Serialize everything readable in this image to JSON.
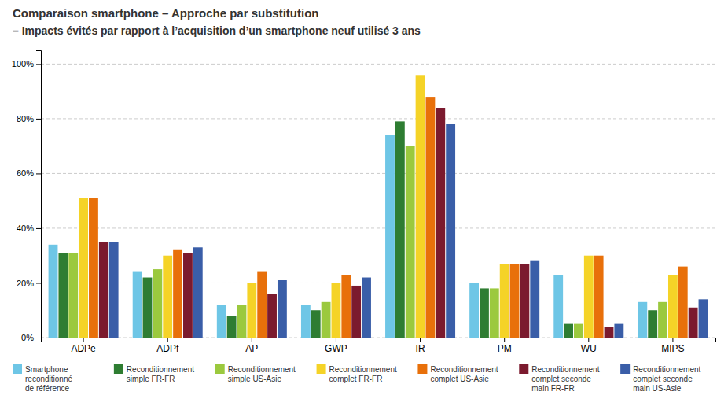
{
  "chart_data": {
    "type": "bar",
    "title": "Comparaison smartphone – Approche par substitution",
    "subtitle": "– Impacts évités par rapport à l’acquisition d’un smartphone neuf utilisé 3 ans",
    "categories": [
      "ADPe",
      "ADPf",
      "AP",
      "GWP",
      "IR",
      "PM",
      "WU",
      "MIPS"
    ],
    "series": [
      {
        "name": "Smartphone\nreconditionné\nde référence",
        "color": "#6ec6e6",
        "values": [
          34,
          24,
          12,
          12,
          74,
          20,
          23,
          13
        ]
      },
      {
        "name": "Reconditionnement\nsimple FR-FR",
        "color": "#2e7d32",
        "values": [
          31,
          22,
          8,
          10,
          79,
          18,
          5,
          10
        ]
      },
      {
        "name": "Reconditionnement\nsimple US-Asie",
        "color": "#9bc93e",
        "values": [
          31,
          25,
          12,
          13,
          70,
          18,
          5,
          13
        ]
      },
      {
        "name": "Reconditionnement\ncomplet FR-FR",
        "color": "#f5d327",
        "values": [
          51,
          30,
          20,
          20,
          96,
          27,
          30,
          23
        ]
      },
      {
        "name": "Reconditionnement\ncomplet US-Asie",
        "color": "#e8700a",
        "values": [
          51,
          32,
          24,
          23,
          88,
          27,
          30,
          26
        ]
      },
      {
        "name": "Reconditionnement\ncomplet seconde\nmain FR-FR",
        "color": "#7b1a2e",
        "values": [
          35,
          31,
          16,
          19,
          84,
          27,
          4,
          11
        ]
      },
      {
        "name": "Reconditionnement\ncomplet seconde\nmain US-Asie",
        "color": "#3a5ea8",
        "values": [
          35,
          33,
          21,
          22,
          78,
          28,
          5,
          14
        ]
      }
    ],
    "ylim": [
      0,
      105
    ],
    "yticks": [
      {
        "value": 0,
        "label": "0%"
      },
      {
        "value": 20,
        "label": "20%"
      },
      {
        "value": 40,
        "label": "40%"
      },
      {
        "value": 60,
        "label": "60%"
      },
      {
        "value": 80,
        "label": "80%"
      },
      {
        "value": 100,
        "label": "100%"
      }
    ],
    "grid": true,
    "legend": "bottom"
  }
}
